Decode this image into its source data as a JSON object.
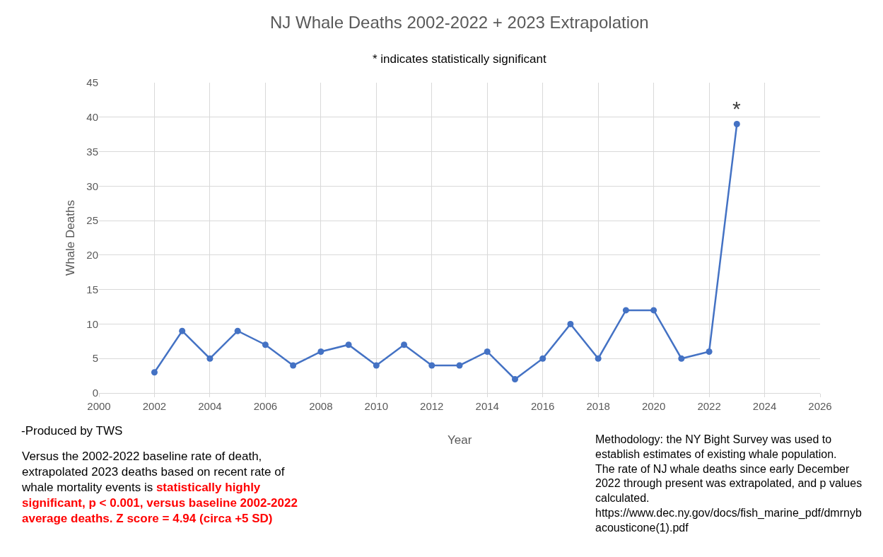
{
  "chart_data": {
    "type": "line",
    "title": "NJ Whale Deaths 2002-2022 + 2023 Extrapolation",
    "subtitle": "* indicates statistically significant",
    "xlabel": "Year",
    "ylabel": "Whale Deaths",
    "x": [
      2002,
      2003,
      2004,
      2005,
      2006,
      2007,
      2008,
      2009,
      2010,
      2011,
      2012,
      2013,
      2014,
      2015,
      2016,
      2017,
      2018,
      2019,
      2020,
      2021,
      2022,
      2023
    ],
    "series": [
      {
        "color": "#4472c4",
        "values": [
          3,
          9,
          5,
          9,
          7,
          4,
          6,
          7,
          4,
          7,
          4,
          4,
          6,
          2,
          5,
          10,
          5,
          12,
          12,
          5,
          6,
          39
        ]
      }
    ],
    "xlim": [
      2000,
      2026
    ],
    "xticks": [
      2000,
      2002,
      2004,
      2006,
      2008,
      2010,
      2012,
      2014,
      2016,
      2018,
      2020,
      2022,
      2024,
      2026
    ],
    "ylim": [
      0,
      45
    ],
    "yticks": [
      0,
      5,
      10,
      15,
      20,
      25,
      30,
      35,
      40,
      45
    ],
    "grid": true,
    "marker": "circle",
    "line_style": "solid",
    "annotations": [
      {
        "text": "*",
        "x": 2023,
        "y": 39
      },
      "-Produced by TWS",
      "Versus the 2002-2022 baseline rate of death, extrapolated 2023 deaths based on recent rate of whale mortality events is",
      "statistically highly significant, p < 0.001, versus baseline 2002-2022 average deaths. Z score = 4.94 (circa +5 SD)",
      "Methodology: the NY Bight Survey was used to establish estimates of existing whale population. The rate of NJ whale deaths since early December 2022 through present was extrapolated, and p values calculated. https://www.dec.ny.gov/docs/fish_marine_pdf/dmrnyb acousticone(1).pdf"
    ]
  }
}
